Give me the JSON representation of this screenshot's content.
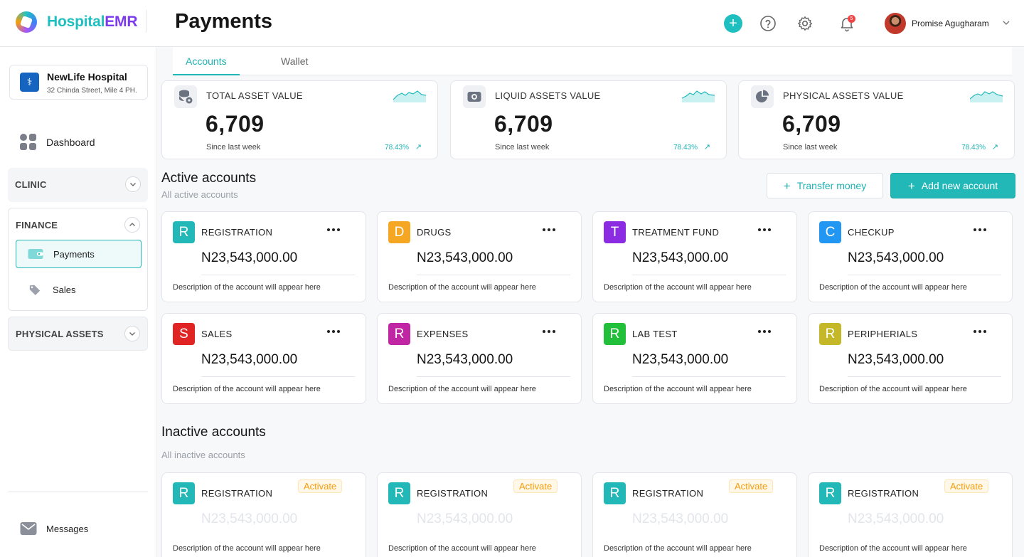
{
  "header": {
    "logo_part1": "Hospital",
    "logo_part2": "EMR",
    "page_title": "Payments",
    "notification_count": "5",
    "user_name": "Promise Agugharam"
  },
  "sidebar": {
    "hospital_name": "NewLife Hospital",
    "hospital_address": "32 Chinda Street, Mile 4 PH.",
    "dashboard_label": "Dashboard",
    "clinic_label": "CLINIC",
    "finance_label": "FINANCE",
    "payments_label": "Payments",
    "sales_label": "Sales",
    "physical_assets_label": "PHYSICAL ASSETS",
    "messages_label": "Messages"
  },
  "tabs": [
    "Accounts",
    "Wallet"
  ],
  "stats": [
    {
      "title": "TOTAL ASSET VALUE",
      "value": "6,709",
      "since": "Since last week",
      "pct": "78.43%",
      "icon": "database-settings-icon"
    },
    {
      "title": "LIQUID ASSETS VALUE",
      "value": "6,709",
      "since": "Since last week",
      "pct": "78.43%",
      "icon": "cash-icon"
    },
    {
      "title": "PHYSICAL ASSETS VALUE",
      "value": "6,709",
      "since": "Since last week",
      "pct": "78.43%",
      "icon": "pie-chart-icon"
    }
  ],
  "active": {
    "title": "Active accounts",
    "subtitle": "All active accounts",
    "transfer_label": "Transfer money",
    "add_label": "Add new account"
  },
  "active_accounts": [
    {
      "letter": "R",
      "name": "REGISTRATION",
      "amount": "N23,543,000.00",
      "desc": "Description of the account will appear here",
      "color": "#22b8b8"
    },
    {
      "letter": "D",
      "name": "DRUGS",
      "amount": "N23,543,000.00",
      "desc": "Description of the account will appear here",
      "color": "#f5a623"
    },
    {
      "letter": "T",
      "name": "TREATMENT FUND",
      "amount": "N23,543,000.00",
      "desc": "Description of the account will appear here",
      "color": "#8b2be2"
    },
    {
      "letter": "C",
      "name": "CHECKUP",
      "amount": "N23,543,000.00",
      "desc": "Description of the account will appear here",
      "color": "#2196f3"
    },
    {
      "letter": "S",
      "name": "SALES",
      "amount": "N23,543,000.00",
      "desc": "Description of the account will appear here",
      "color": "#e02424"
    },
    {
      "letter": "R",
      "name": "EXPENSES",
      "amount": "N23,543,000.00",
      "desc": "Description of the account will appear here",
      "color": "#c026a3"
    },
    {
      "letter": "R",
      "name": "LAB TEST",
      "amount": "N23,543,000.00",
      "desc": "Description of the account will appear here",
      "color": "#22c03a"
    },
    {
      "letter": "R",
      "name": "PERIPHERIALS",
      "amount": "N23,543,000.00",
      "desc": "Description of the account will appear here",
      "color": "#c4b829"
    }
  ],
  "inactive": {
    "title": "Inactive accounts",
    "subtitle": "All inactive accounts",
    "activate_label": "Activate"
  },
  "inactive_accounts": [
    {
      "letter": "R",
      "name": "REGISTRATION",
      "amount": "N23,543,000.00",
      "desc": "Description of the account will appear here",
      "color": "#22b8b8"
    },
    {
      "letter": "R",
      "name": "REGISTRATION",
      "amount": "N23,543,000.00",
      "desc": "Description of the account will appear here",
      "color": "#22b8b8"
    },
    {
      "letter": "R",
      "name": "REGISTRATION",
      "amount": "N23,543,000.00",
      "desc": "Description of the account will appear here",
      "color": "#22b8b8"
    },
    {
      "letter": "R",
      "name": "REGISTRATION",
      "amount": "N23,543,000.00",
      "desc": "Description of the account will appear here",
      "color": "#22b8b8"
    }
  ],
  "colors": {
    "accent": "#22b8b8",
    "brand_purple": "#7c3aed",
    "activate": "#f59e0b"
  }
}
